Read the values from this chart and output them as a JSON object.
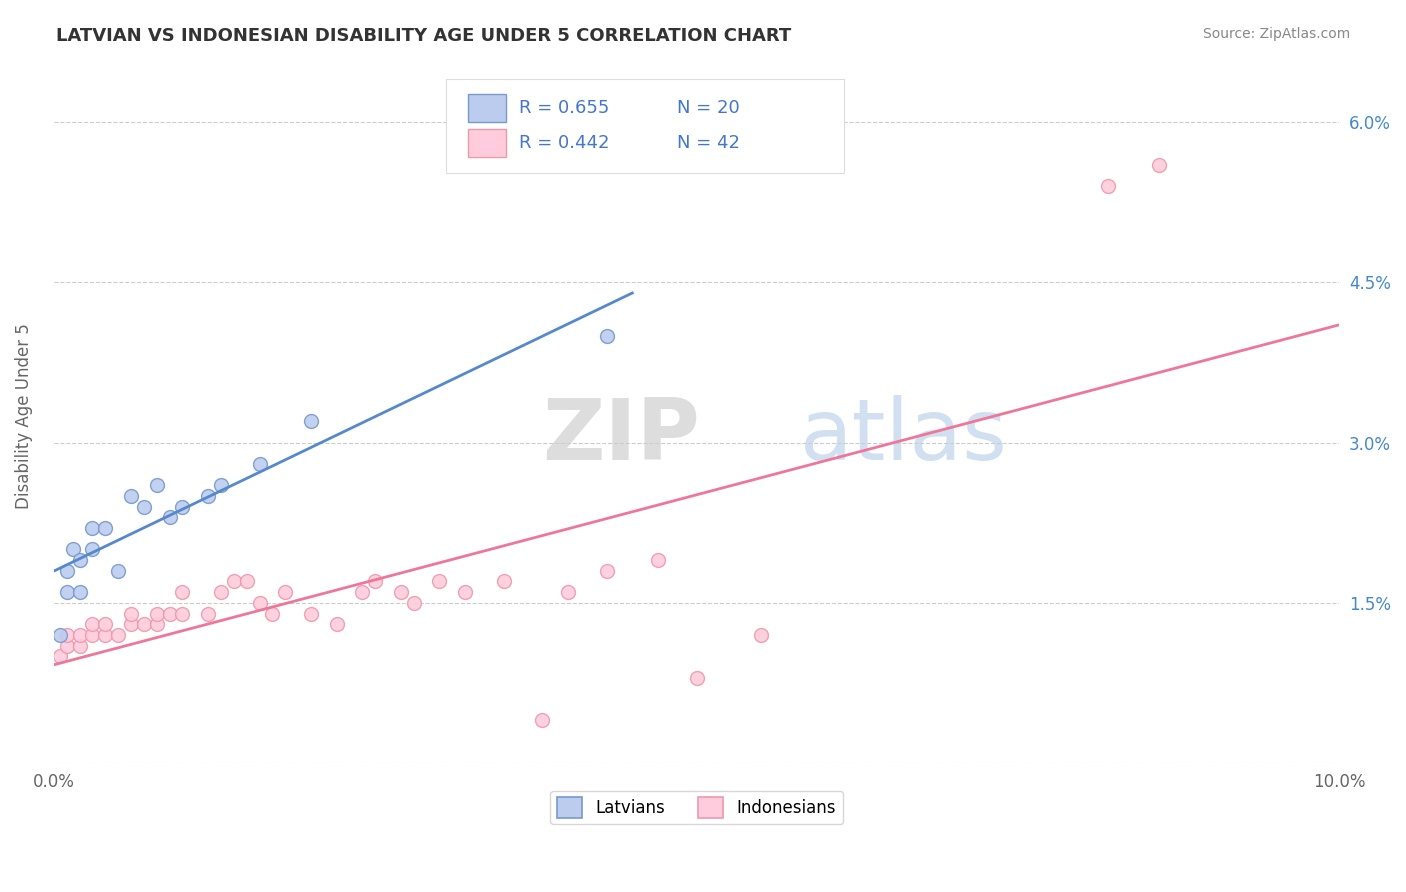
{
  "title": "LATVIAN VS INDONESIAN DISABILITY AGE UNDER 5 CORRELATION CHART",
  "source": "Source: ZipAtlas.com",
  "ylabel": "Disability Age Under 5",
  "xlim": [
    0.0,
    0.1
  ],
  "ylim": [
    0.0,
    0.065
  ],
  "x_tick_positions": [
    0.0,
    0.02,
    0.04,
    0.06,
    0.08,
    0.1
  ],
  "x_tick_labels": [
    "0.0%",
    "",
    "",
    "",
    "",
    "10.0%"
  ],
  "y_tick_positions": [
    0.0,
    0.015,
    0.03,
    0.045,
    0.06
  ],
  "y_tick_labels_right": [
    "",
    "1.5%",
    "3.0%",
    "4.5%",
    "6.0%"
  ],
  "latvian_line_color": "#5588CC",
  "latvian_dot_face": "#BBCCEE",
  "latvian_dot_edge": "#7799CC",
  "indonesian_line_color": "#EE7799",
  "indonesian_dot_face": "#FFCCDD",
  "indonesian_dot_edge": "#EE99AA",
  "R_latvian": 0.655,
  "N_latvian": 20,
  "R_indonesian": 0.442,
  "N_indonesian": 42,
  "legend_label_latvian": "Latvians",
  "legend_label_indonesian": "Indonesians",
  "watermark_part1": "ZIP",
  "watermark_part2": "atlas",
  "latvian_x": [
    0.0005,
    0.001,
    0.001,
    0.0015,
    0.002,
    0.002,
    0.003,
    0.003,
    0.004,
    0.005,
    0.006,
    0.007,
    0.008,
    0.009,
    0.01,
    0.012,
    0.013,
    0.016,
    0.02,
    0.043
  ],
  "latvian_y": [
    0.012,
    0.016,
    0.018,
    0.02,
    0.016,
    0.019,
    0.022,
    0.02,
    0.022,
    0.018,
    0.025,
    0.024,
    0.026,
    0.023,
    0.024,
    0.025,
    0.026,
    0.028,
    0.032,
    0.04
  ],
  "indonesian_x": [
    0.0005,
    0.001,
    0.001,
    0.002,
    0.002,
    0.003,
    0.003,
    0.004,
    0.004,
    0.005,
    0.006,
    0.006,
    0.007,
    0.008,
    0.008,
    0.009,
    0.01,
    0.01,
    0.012,
    0.013,
    0.014,
    0.015,
    0.016,
    0.017,
    0.018,
    0.02,
    0.022,
    0.024,
    0.025,
    0.027,
    0.028,
    0.03,
    0.032,
    0.035,
    0.038,
    0.04,
    0.043,
    0.047,
    0.05,
    0.055,
    0.082,
    0.086
  ],
  "indonesian_y": [
    0.01,
    0.011,
    0.012,
    0.011,
    0.012,
    0.012,
    0.013,
    0.012,
    0.013,
    0.012,
    0.013,
    0.014,
    0.013,
    0.013,
    0.014,
    0.014,
    0.014,
    0.016,
    0.014,
    0.016,
    0.017,
    0.017,
    0.015,
    0.014,
    0.016,
    0.014,
    0.013,
    0.016,
    0.017,
    0.016,
    0.015,
    0.017,
    0.016,
    0.017,
    0.004,
    0.016,
    0.018,
    0.019,
    0.008,
    0.012,
    0.054,
    0.056
  ],
  "lv_line_x0": 0.0,
  "lv_line_x1": 0.045,
  "id_line_x0": 0.0,
  "id_line_x1": 0.1
}
